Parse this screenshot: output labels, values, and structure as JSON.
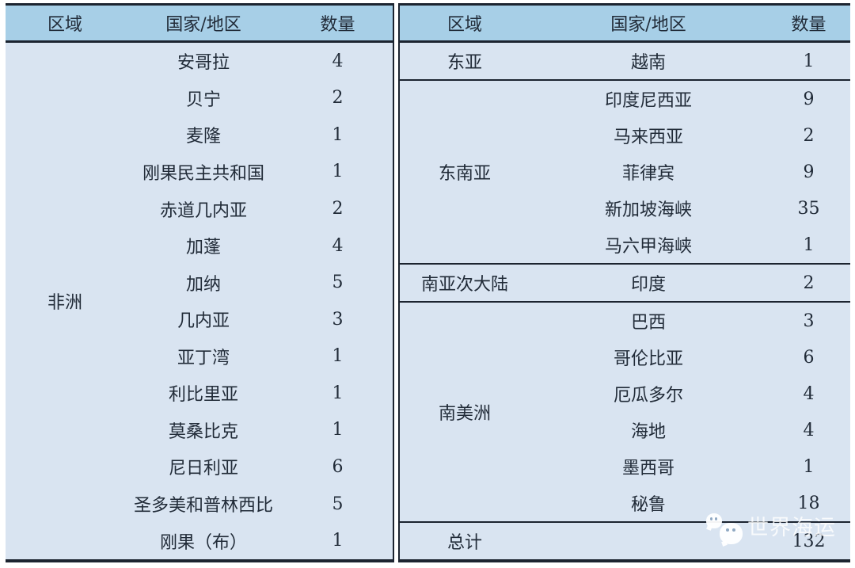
{
  "colors": {
    "header_bg": "#a7cfe7",
    "body_bg": "#d9e4f1",
    "border": "#1c2430",
    "text": "#212b38",
    "watermark_text": "#ffffff"
  },
  "left_table": {
    "headers": [
      "区域",
      "国家/地区",
      "数量"
    ],
    "region": "非洲",
    "rows": [
      {
        "country": "安哥拉",
        "count": "4"
      },
      {
        "country": "贝宁",
        "count": "2"
      },
      {
        "country": "麦隆",
        "count": "1"
      },
      {
        "country": "刚果民主共和国",
        "count": "1"
      },
      {
        "country": "赤道几内亚",
        "count": "2"
      },
      {
        "country": "加蓬",
        "count": "4"
      },
      {
        "country": "加纳",
        "count": "5"
      },
      {
        "country": "几内亚",
        "count": "3"
      },
      {
        "country": "亚丁湾",
        "count": "1"
      },
      {
        "country": "利比里亚",
        "count": "1"
      },
      {
        "country": "莫桑比克",
        "count": "1"
      },
      {
        "country": "尼日利亚",
        "count": "6"
      },
      {
        "country": "圣多美和普林西比",
        "count": "5"
      },
      {
        "country": "刚果（布）",
        "count": "1"
      }
    ]
  },
  "right_table": {
    "headers": [
      "区域",
      "国家/地区",
      "数量"
    ],
    "groups": [
      {
        "region": "东亚",
        "rows": [
          {
            "country": "越南",
            "count": "1"
          }
        ]
      },
      {
        "region": "东南亚",
        "rows": [
          {
            "country": "印度尼西亚",
            "count": "9"
          },
          {
            "country": "马来西亚",
            "count": "2"
          },
          {
            "country": "菲律宾",
            "count": "9"
          },
          {
            "country": "新加坡海峡",
            "count": "35"
          },
          {
            "country": "马六甲海峡",
            "count": "1"
          }
        ]
      },
      {
        "region": "南亚次大陆",
        "rows": [
          {
            "country": "印度",
            "count": "2"
          }
        ]
      },
      {
        "region": "南美洲",
        "rows": [
          {
            "country": "巴西",
            "count": "3"
          },
          {
            "country": "哥伦比亚",
            "count": "6"
          },
          {
            "country": "厄瓜多尔",
            "count": "4"
          },
          {
            "country": "海地",
            "count": "4"
          },
          {
            "country": "墨西哥",
            "count": "1"
          },
          {
            "country": "秘鲁",
            "count": "18"
          }
        ]
      }
    ],
    "total": {
      "label": "总计",
      "value": "132"
    }
  },
  "watermark": {
    "text": "世界海运",
    "icon": "wechat-icon"
  },
  "chart_data": [
    {
      "type": "table",
      "title": "",
      "columns": [
        "区域",
        "国家/地区",
        "数量"
      ],
      "rows": [
        [
          "非洲",
          "安哥拉",
          4
        ],
        [
          "非洲",
          "贝宁",
          2
        ],
        [
          "非洲",
          "麦隆",
          1
        ],
        [
          "非洲",
          "刚果民主共和国",
          1
        ],
        [
          "非洲",
          "赤道几内亚",
          2
        ],
        [
          "非洲",
          "加蓬",
          4
        ],
        [
          "非洲",
          "加纳",
          5
        ],
        [
          "非洲",
          "几内亚",
          3
        ],
        [
          "非洲",
          "亚丁湾",
          1
        ],
        [
          "非洲",
          "利比里亚",
          1
        ],
        [
          "非洲",
          "莫桑比克",
          1
        ],
        [
          "非洲",
          "尼日利亚",
          6
        ],
        [
          "非洲",
          "圣多美和普林西比",
          5
        ],
        [
          "非洲",
          "刚果（布）",
          1
        ]
      ]
    },
    {
      "type": "table",
      "title": "",
      "columns": [
        "区域",
        "国家/地区",
        "数量"
      ],
      "rows": [
        [
          "东亚",
          "越南",
          1
        ],
        [
          "东南亚",
          "印度尼西亚",
          9
        ],
        [
          "东南亚",
          "马来西亚",
          2
        ],
        [
          "东南亚",
          "菲律宾",
          9
        ],
        [
          "东南亚",
          "新加坡海峡",
          35
        ],
        [
          "东南亚",
          "马六甲海峡",
          1
        ],
        [
          "南亚次大陆",
          "印度",
          2
        ],
        [
          "南美洲",
          "巴西",
          3
        ],
        [
          "南美洲",
          "哥伦比亚",
          6
        ],
        [
          "南美洲",
          "厄瓜多尔",
          4
        ],
        [
          "南美洲",
          "海地",
          4
        ],
        [
          "南美洲",
          "墨西哥",
          1
        ],
        [
          "南美洲",
          "秘鲁",
          18
        ],
        [
          "总计",
          "",
          132
        ]
      ]
    }
  ]
}
